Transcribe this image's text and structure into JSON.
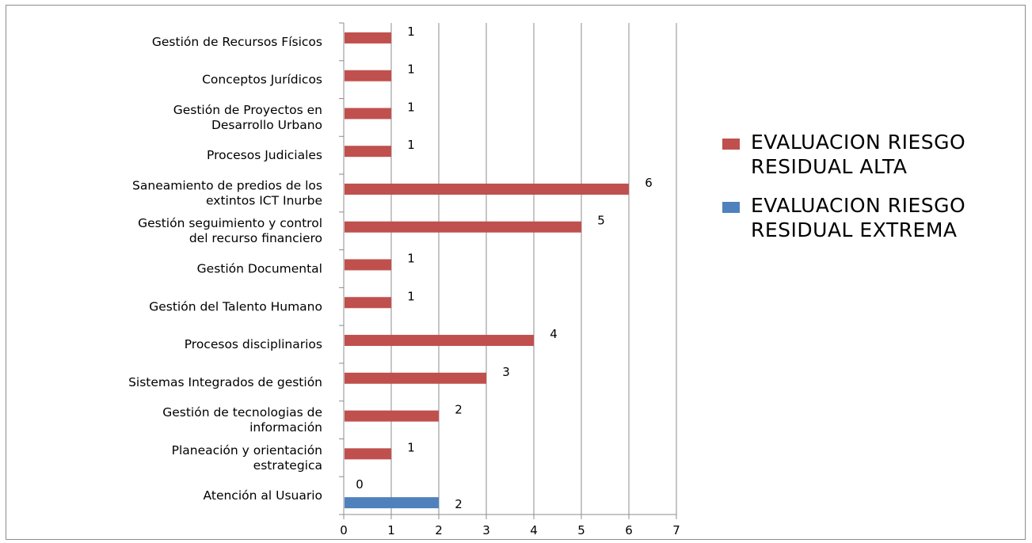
{
  "chart_data": {
    "type": "bar",
    "orientation": "horizontal",
    "categories": [
      "Gestión de Recursos Físicos",
      "Conceptos Jurídicos",
      "Gestión de Proyectos en\nDesarrollo Urbano",
      "Procesos Judiciales",
      "Saneamiento de predios de los\nextintos ICT Inurbe",
      "Gestión seguimiento y control\ndel recurso financiero",
      "Gestión Documental",
      "Gestión del Talento Humano",
      "Procesos disciplinarios",
      "Sistemas Integrados de gestión",
      "Gestión de tecnologias de\ninformación",
      "Planeación y orientación\nestrategica",
      "Atención al Usuario"
    ],
    "series": [
      {
        "name": "EVALUACION RIESGO RESIDUAL ALTA",
        "color": "#c0504d",
        "values": [
          1,
          1,
          1,
          1,
          6,
          5,
          1,
          1,
          4,
          3,
          2,
          1,
          0
        ]
      },
      {
        "name": "EVALUACION RIESGO RESIDUAL EXTREMA",
        "color": "#4f81bd",
        "values": [
          null,
          null,
          null,
          null,
          null,
          null,
          null,
          null,
          null,
          null,
          null,
          null,
          2
        ]
      }
    ],
    "xlim": [
      0,
      7
    ],
    "xticks": [
      0,
      1,
      2,
      3,
      4,
      5,
      6,
      7
    ],
    "grid": "vertical",
    "legend_position": "right"
  }
}
